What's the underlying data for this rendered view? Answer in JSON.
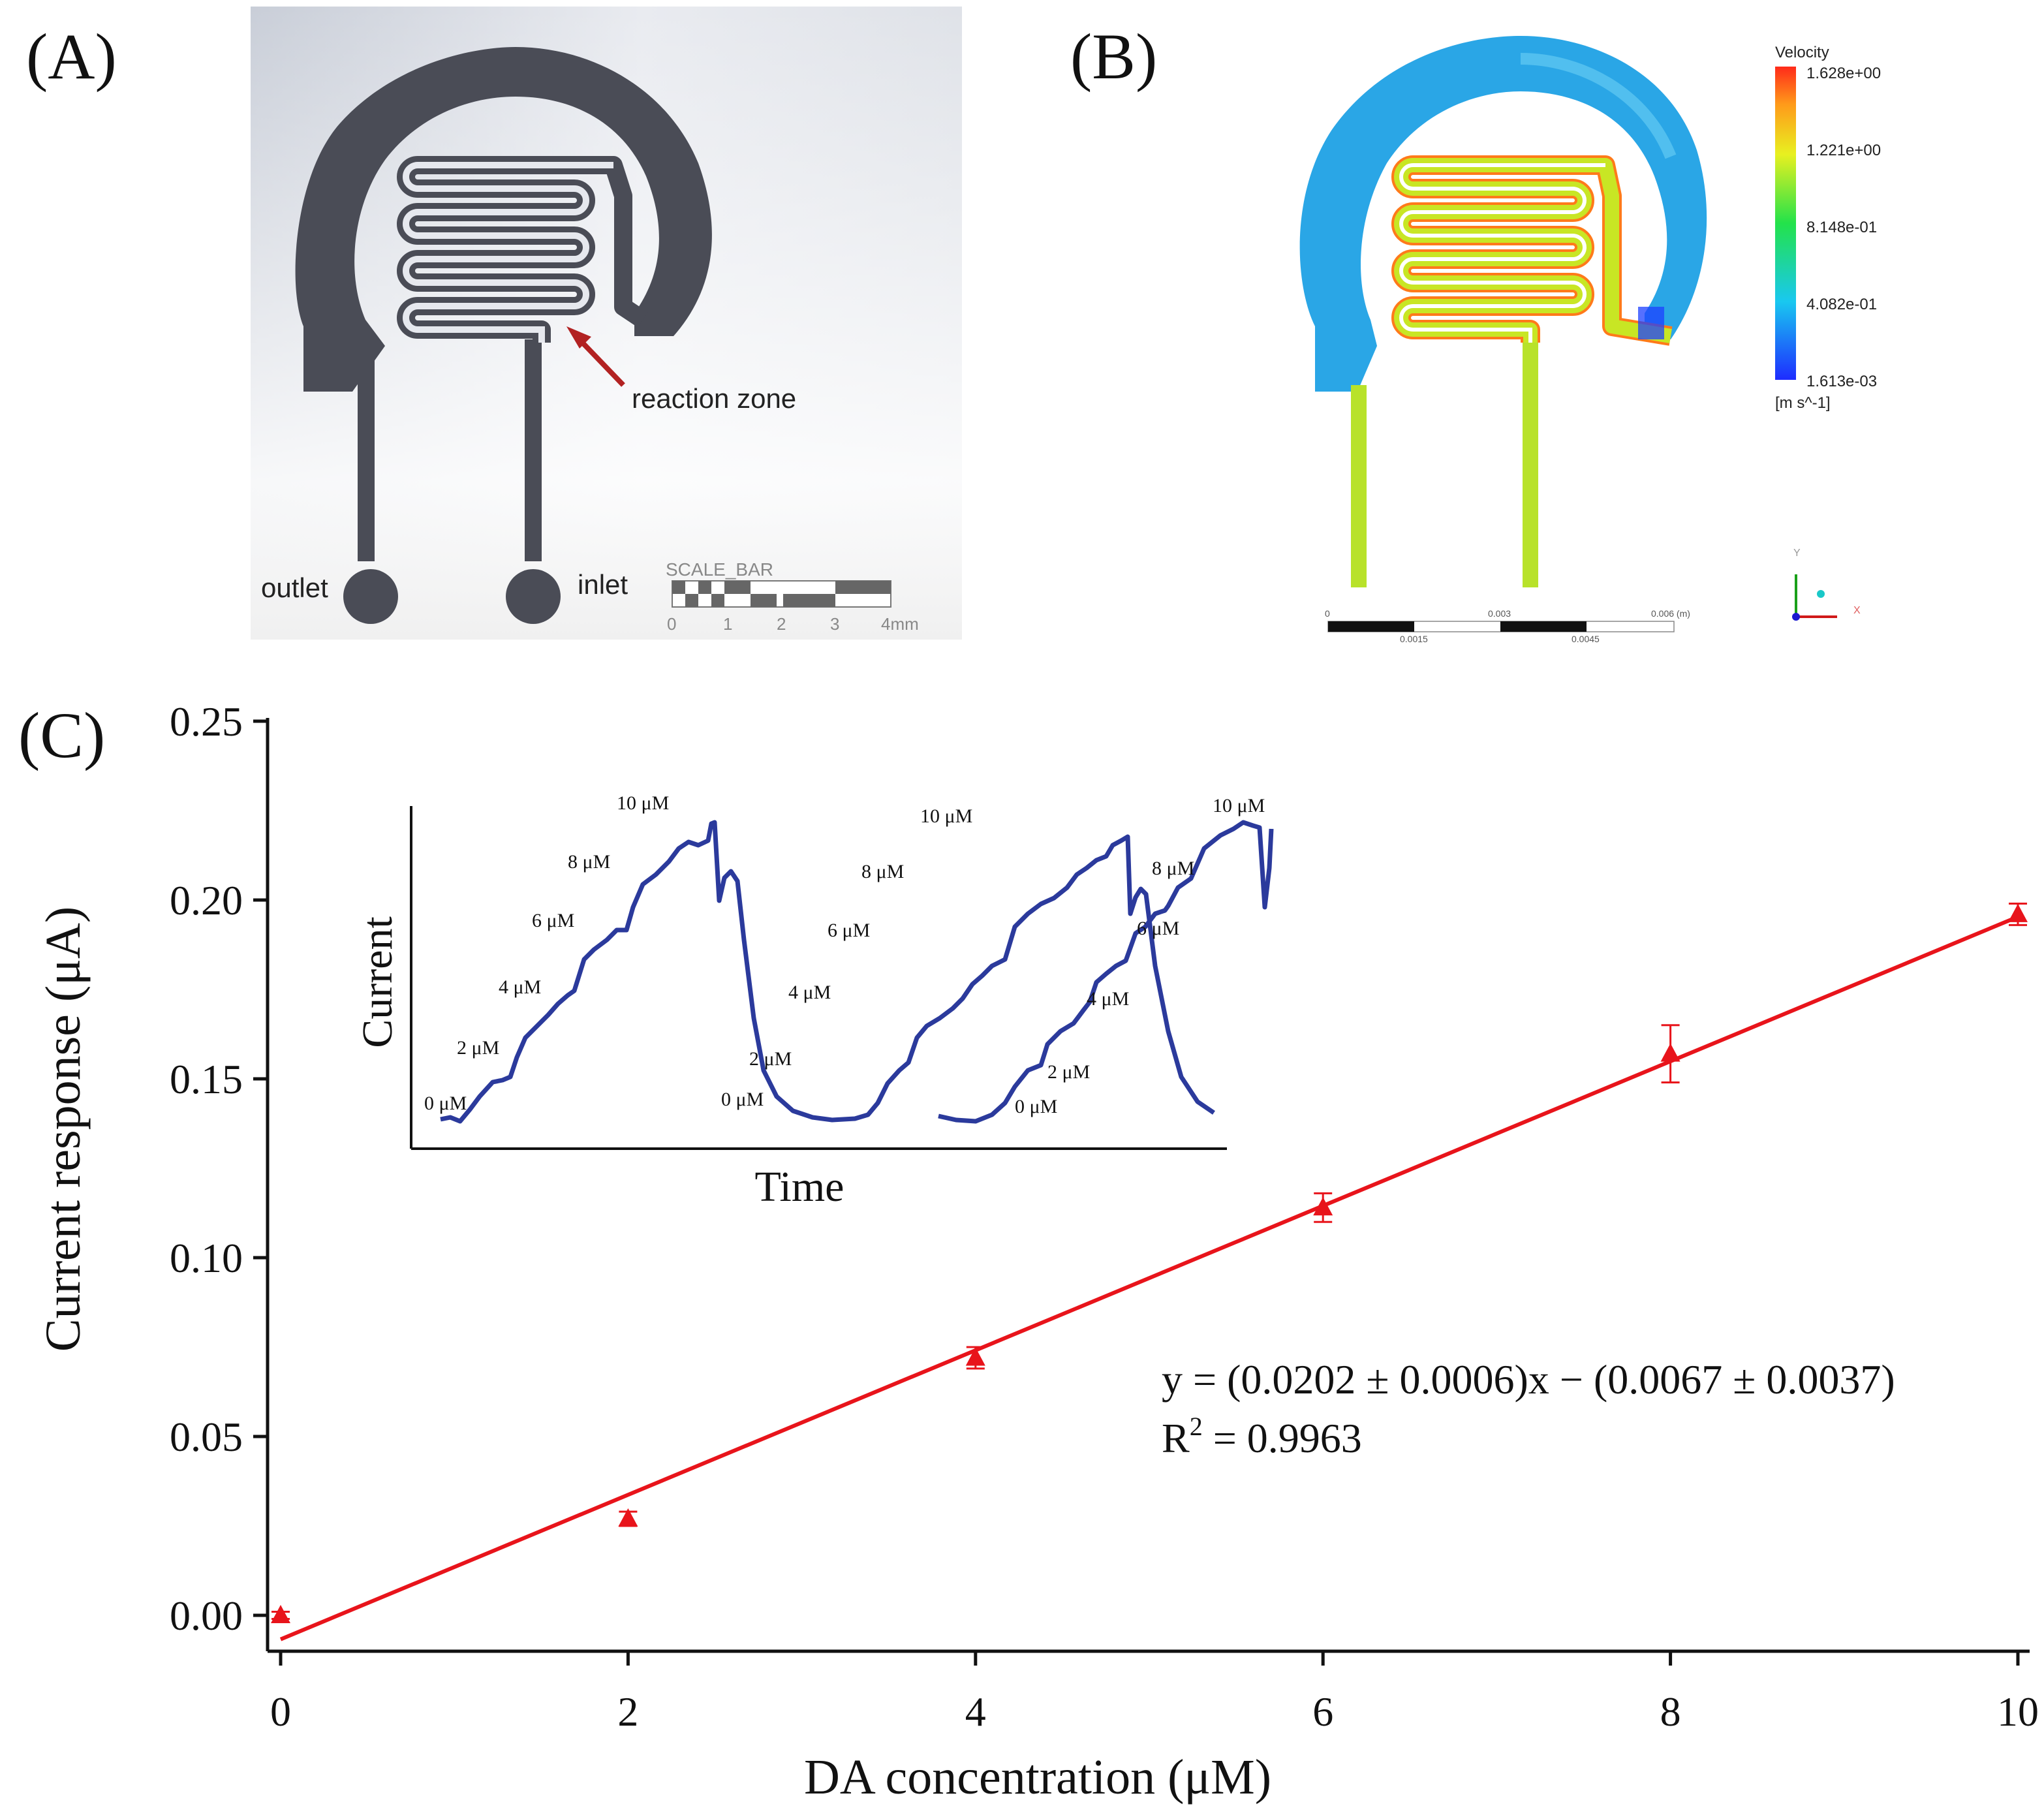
{
  "panel_a": {
    "label": "(A)",
    "outlet_label": "outlet",
    "inlet_label": "inlet",
    "reaction_label": "reaction zone",
    "scale_title": "SCALE_BAR",
    "scale_ticks": [
      "0",
      "1",
      "2",
      "3",
      "4mm"
    ],
    "colors": {
      "chip": "#4a4c56",
      "arrow": "#b22222"
    }
  },
  "panel_b": {
    "label": "(B)",
    "legend_title": "Velocity",
    "legend_values": [
      "1.628e+00",
      "1.221e+00",
      "8.148e-01",
      "4.082e-01",
      "1.613e-03"
    ],
    "legend_unit": "[m s^-1]",
    "scale_top": [
      "0",
      "0.003",
      "0.006 (m)"
    ],
    "scale_bottom": [
      "0.0015",
      "0.0045"
    ],
    "axis_labels": {
      "x": "X",
      "y": "Y"
    }
  },
  "panel_c": {
    "label": "(C)",
    "equation": "y = (0.0202 ± 0.0006)x − (0.0067 ± 0.0037)",
    "r2_base": "R",
    "r2_sup": "2",
    "r2_tail": " = 0.9963",
    "inset": {
      "xlabel": "Time",
      "ylabel": "Current",
      "step_labels": [
        "0 μM",
        "2 μM",
        "4 μM",
        "6 μM",
        "8 μM",
        "10 μM"
      ],
      "color": "#2b3a9c"
    }
  },
  "chart_data": {
    "type": "scatter",
    "title": "",
    "xlabel": "DA concentration  (μM)",
    "ylabel": "Current response (μA)",
    "xlim": [
      0,
      10
    ],
    "ylim": [
      0,
      0.25
    ],
    "xticks": [
      "0",
      "2",
      "4",
      "6",
      "8",
      "10"
    ],
    "yticks": [
      "0.00",
      "0.05",
      "0.10",
      "0.15",
      "0.20",
      "0.25"
    ],
    "x": [
      0,
      2,
      4,
      6,
      8,
      10
    ],
    "y": [
      0.0,
      0.027,
      0.072,
      0.114,
      0.157,
      0.196
    ],
    "yerr": [
      0.001,
      0.002,
      0.003,
      0.004,
      0.008,
      0.003
    ],
    "fit": {
      "slope": 0.0202,
      "intercept": -0.0067
    },
    "grid": false,
    "color": "#e8141b"
  }
}
